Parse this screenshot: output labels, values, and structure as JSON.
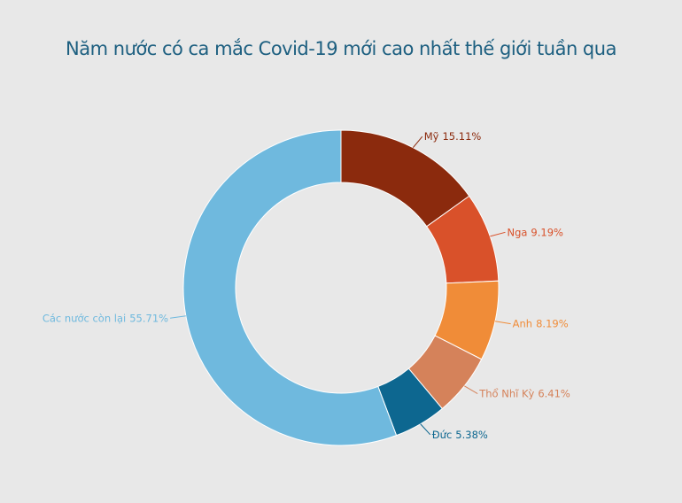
{
  "chart_data": {
    "type": "donut",
    "title": "Năm nước có ca mắc Covid-19 mới cao nhất thế giới tuần qua",
    "categories": [
      "Mỹ",
      "Nga",
      "Anh",
      "Thổ Nhĩ Kỳ",
      "Đức",
      "Các nước còn lại"
    ],
    "values": [
      15.11,
      9.19,
      8.19,
      6.41,
      5.38,
      55.71
    ],
    "value_labels": [
      "15.11%",
      "9.19%",
      "8.19%",
      "6.41%",
      "5.38%",
      "55.71%"
    ],
    "colors": [
      "#8b2a0d",
      "#d9512a",
      "#f08c38",
      "#d5825a",
      "#0d6790",
      "#6fb9de"
    ]
  }
}
